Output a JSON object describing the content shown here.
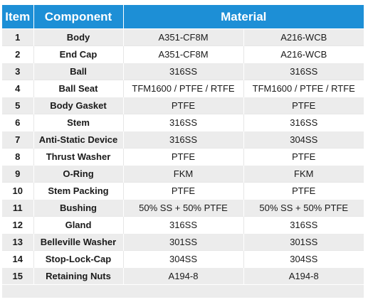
{
  "header": {
    "item": "Item",
    "component": "Component",
    "material": "Material"
  },
  "rows": [
    {
      "item": "1",
      "component": "Body",
      "mat1": "A351-CF8M",
      "mat2": "A216-WCB"
    },
    {
      "item": "2",
      "component": "End Cap",
      "mat1": "A351-CF8M",
      "mat2": "A216-WCB"
    },
    {
      "item": "3",
      "component": "Ball",
      "mat1": "316SS",
      "mat2": "316SS"
    },
    {
      "item": "4",
      "component": "Ball Seat",
      "mat1": "TFM1600 / PTFE / RTFE",
      "mat2": "TFM1600 / PTFE / RTFE"
    },
    {
      "item": "5",
      "component": "Body Gasket",
      "mat1": "PTFE",
      "mat2": "PTFE"
    },
    {
      "item": "6",
      "component": "Stem",
      "mat1": "316SS",
      "mat2": "316SS"
    },
    {
      "item": "7",
      "component": "Anti-Static Device",
      "mat1": "316SS",
      "mat2": "304SS"
    },
    {
      "item": "8",
      "component": "Thrust Washer",
      "mat1": "PTFE",
      "mat2": "PTFE"
    },
    {
      "item": "9",
      "component": "O-Ring",
      "mat1": "FKM",
      "mat2": "FKM"
    },
    {
      "item": "10",
      "component": "Stem Packing",
      "mat1": "PTFE",
      "mat2": "PTFE"
    },
    {
      "item": "11",
      "component": "Bushing",
      "mat1": "50% SS + 50% PTFE",
      "mat2": "50% SS + 50% PTFE"
    },
    {
      "item": "12",
      "component": "Gland",
      "mat1": "316SS",
      "mat2": "316SS"
    },
    {
      "item": "13",
      "component": "Belleville Washer",
      "mat1": "301SS",
      "mat2": "301SS"
    },
    {
      "item": "14",
      "component": "Stop-Lock-Cap",
      "mat1": "304SS",
      "mat2": "304SS"
    },
    {
      "item": "15",
      "component": "Retaining Nuts",
      "mat1": "A194-8",
      "mat2": "A194-8"
    }
  ],
  "colors": {
    "header_bg": "#1d8fd6",
    "stripe": "#ececec"
  }
}
